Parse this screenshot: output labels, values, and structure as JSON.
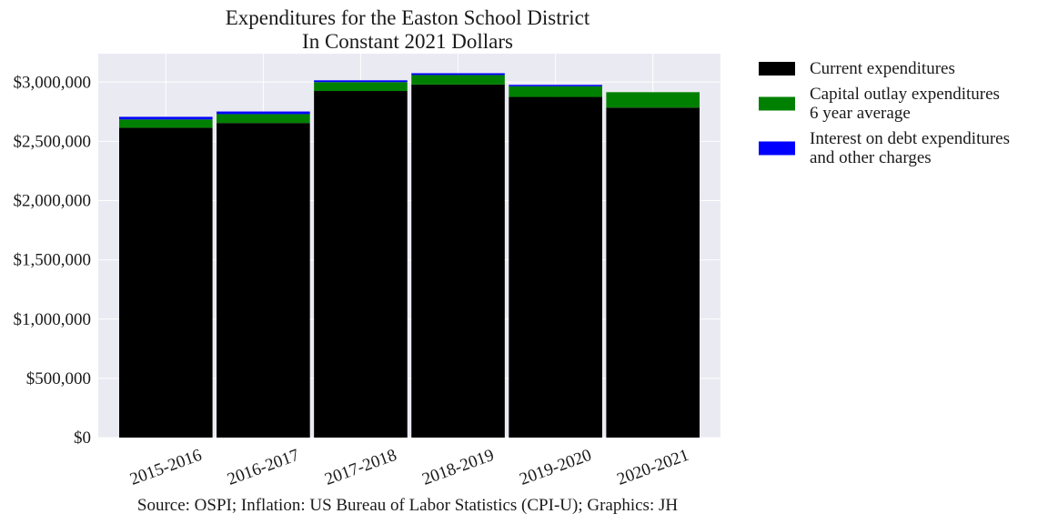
{
  "chart_data": {
    "type": "bar",
    "stacked": true,
    "title": "Expenditures for the Easton School District",
    "subtitle": "In Constant 2021 Dollars",
    "xlabel": "",
    "ylabel": "",
    "categories": [
      "2015-2016",
      "2016-2017",
      "2017-2018",
      "2018-2019",
      "2019-2020",
      "2020-2021"
    ],
    "series": [
      {
        "name": "Current expenditures",
        "color": "#000000",
        "values": [
          2615000,
          2655000,
          2925000,
          2980000,
          2875000,
          2785000
        ]
      },
      {
        "name": "Capital outlay expenditures 6 year average",
        "name_lines": [
          "Capital outlay expenditures",
          "6 year average"
        ],
        "color": "#008000",
        "values": [
          70000,
          75000,
          75000,
          80000,
          90000,
          130000
        ]
      },
      {
        "name": "Interest on debt expenditures and other charges",
        "name_lines": [
          "Interest on debt expenditures",
          "and other charges"
        ],
        "color": "#0000ff",
        "values": [
          22000,
          22000,
          15000,
          15000,
          12000,
          0
        ]
      }
    ],
    "yticks": [
      0,
      500000,
      1000000,
      1500000,
      2000000,
      2500000,
      3000000
    ],
    "ytick_labels": [
      "$0",
      "$500,000",
      "$1,000,000",
      "$1,500,000",
      "$2,000,000",
      "$2,500,000",
      "$3,000,000"
    ],
    "ylim": [
      0,
      3240000
    ],
    "grid": true,
    "legend_position": "outside-right",
    "annotation": "Source: OSPI; Inflation: US Bureau of Labor Statistics (CPI-U); Graphics: JH",
    "colors": {
      "plot_background": "#eaeaf2",
      "grid": "#ffffff"
    }
  }
}
